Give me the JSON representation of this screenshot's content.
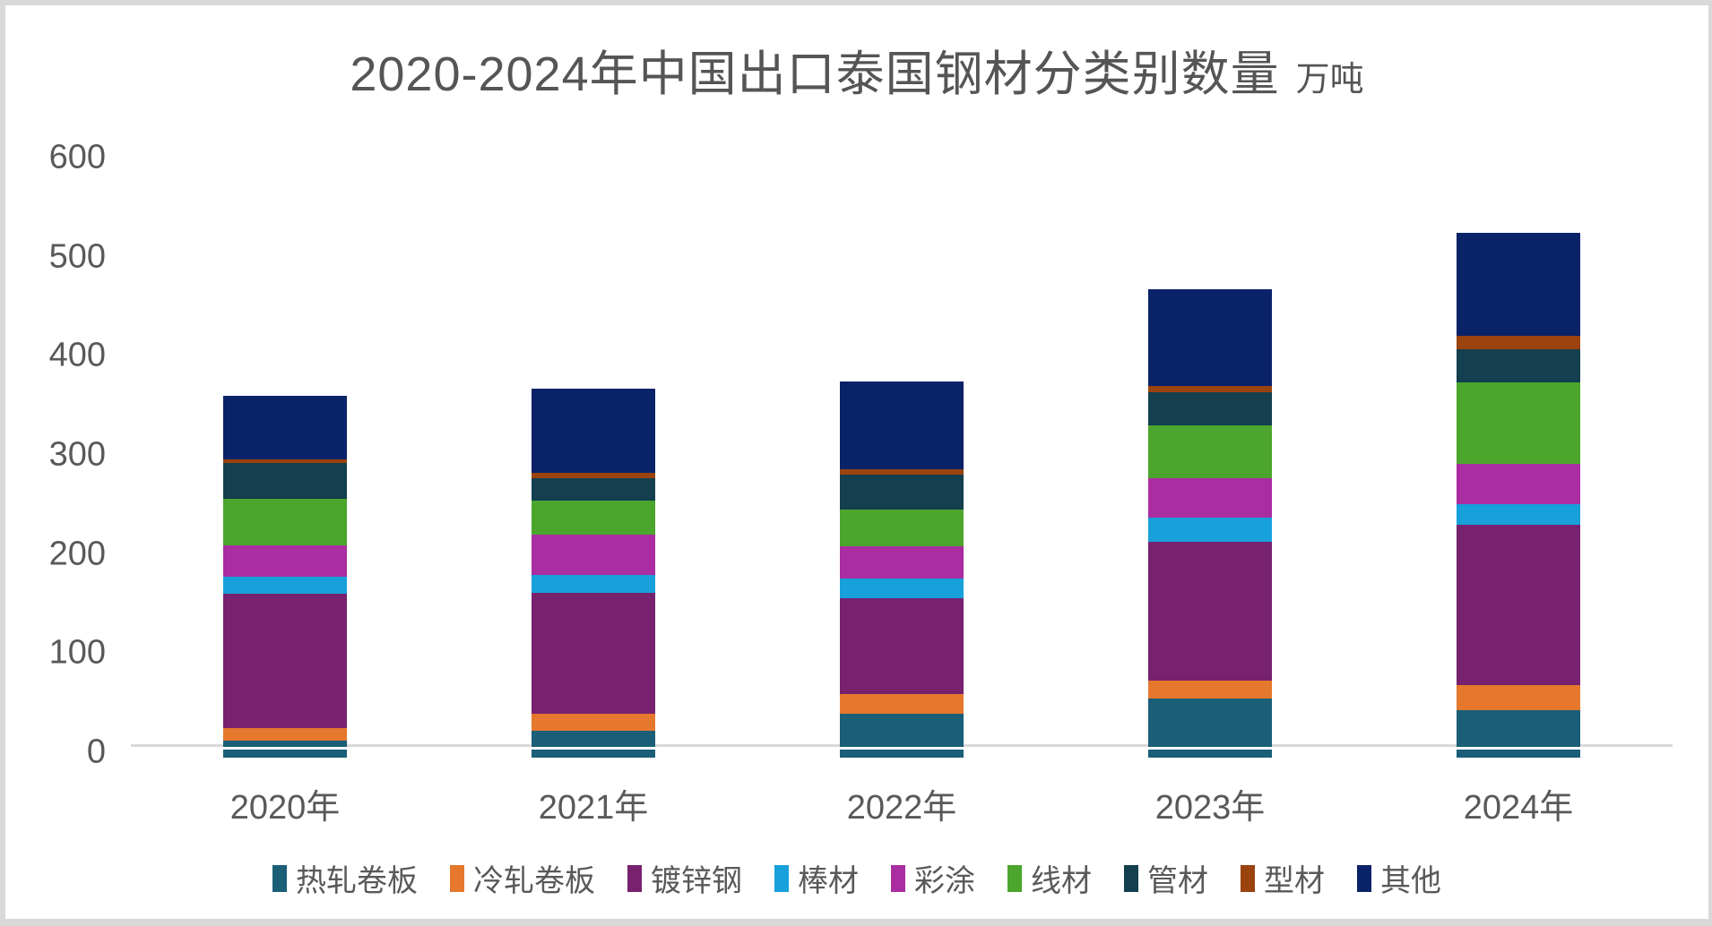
{
  "chart_data": {
    "type": "bar",
    "stacked": true,
    "title": "2020-2024年中国出口泰国钢材分类别数量",
    "unit_label": "万吨",
    "categories": [
      "2020年",
      "2021年",
      "2022年",
      "2023年",
      "2024年"
    ],
    "series": [
      {
        "name": "热轧卷板",
        "color": "#1A5E77",
        "values": [
          17,
          27,
          44,
          60,
          48
        ]
      },
      {
        "name": "冷轧卷板",
        "color": "#E5782D",
        "values": [
          13,
          17,
          20,
          18,
          25
        ]
      },
      {
        "name": "镀锌钢",
        "color": "#77216F",
        "values": [
          135,
          122,
          97,
          140,
          162
        ]
      },
      {
        "name": "棒材",
        "color": "#18A0DB",
        "values": [
          18,
          18,
          20,
          24,
          21
        ]
      },
      {
        "name": "彩涂",
        "color": "#AA2DA1",
        "values": [
          31,
          41,
          32,
          40,
          40
        ]
      },
      {
        "name": "线材",
        "color": "#4CA52D",
        "values": [
          47,
          34,
          37,
          53,
          83
        ]
      },
      {
        "name": "管材",
        "color": "#133F4F",
        "values": [
          36,
          23,
          36,
          34,
          33
        ]
      },
      {
        "name": "型材",
        "color": "#9A430F",
        "values": [
          4,
          5,
          5,
          6,
          14
        ]
      },
      {
        "name": "其他",
        "color": "#0A2268",
        "values": [
          64,
          85,
          89,
          98,
          104
        ]
      }
    ],
    "totals": [
      365,
      372,
      380,
      473,
      530
    ],
    "yticks": [
      0,
      100,
      200,
      300,
      400,
      500,
      600
    ],
    "ylim": [
      0,
      600
    ],
    "xlabel": "",
    "ylabel": "",
    "grid": false,
    "legend_position": "bottom",
    "axis_text_color": "#595959",
    "title_color": "#555555",
    "axis_line_color": "#D9D9D9"
  }
}
